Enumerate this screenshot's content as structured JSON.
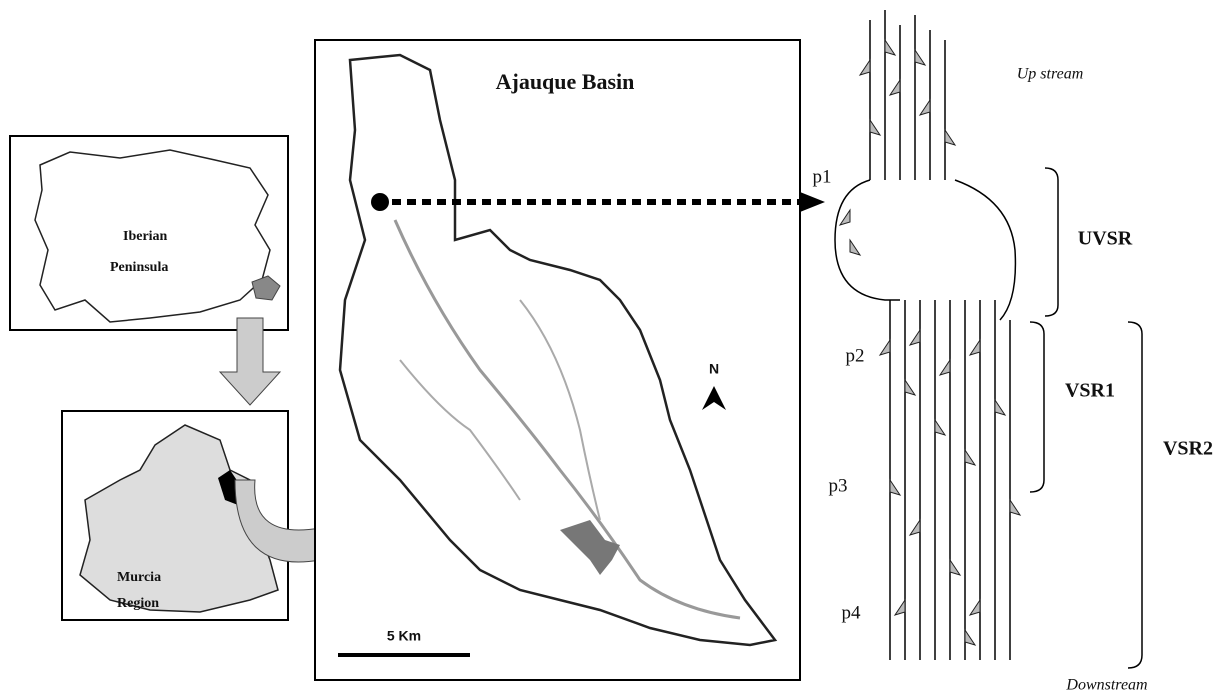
{
  "iberia": {
    "line_1": "Iberian",
    "line_2": "Peninsula"
  },
  "murcia": {
    "line_1": "Murcia",
    "line_2": "Region"
  },
  "basin": {
    "title": "Ajauque Basin",
    "north": "N",
    "scale": "5 Km"
  },
  "plot_diagram": {
    "upstream": "Up stream",
    "downstream": "Downstream",
    "points": [
      "p1",
      "p2",
      "p3",
      "p4"
    ],
    "zones": [
      "UVSR",
      "VSR1",
      "VSR2"
    ]
  }
}
